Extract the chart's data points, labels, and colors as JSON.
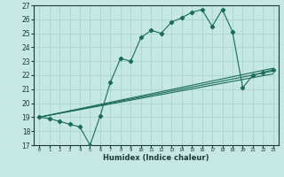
{
  "xlabel": "Humidex (Indice chaleur)",
  "bg_color": "#c5e8e5",
  "grid_color": "#aad4d0",
  "line_color": "#1a6b5a",
  "xlim": [
    -0.5,
    23.5
  ],
  "ylim": [
    17,
    27
  ],
  "xticks": [
    0,
    1,
    2,
    3,
    4,
    5,
    6,
    7,
    8,
    9,
    10,
    11,
    12,
    13,
    14,
    15,
    16,
    17,
    18,
    19,
    20,
    21,
    22,
    23
  ],
  "yticks": [
    17,
    18,
    19,
    20,
    21,
    22,
    23,
    24,
    25,
    26,
    27
  ],
  "line1_x": [
    0,
    1,
    2,
    3,
    4,
    5,
    6,
    7,
    8,
    9,
    10,
    11,
    12,
    13,
    14,
    15,
    16,
    17,
    18,
    19,
    20,
    21,
    22,
    23
  ],
  "line1_y": [
    19.0,
    18.9,
    18.7,
    18.5,
    18.3,
    17.0,
    19.1,
    21.5,
    23.2,
    23.0,
    24.7,
    25.2,
    25.0,
    25.8,
    26.1,
    26.5,
    26.7,
    25.5,
    26.7,
    25.1,
    21.1,
    22.0,
    22.2,
    22.4
  ],
  "line2_x": [
    0,
    23
  ],
  "line2_y": [
    19.0,
    22.5
  ],
  "line3_x": [
    0,
    23
  ],
  "line3_y": [
    19.0,
    22.1
  ],
  "line4_x": [
    0,
    23
  ],
  "line4_y": [
    19.0,
    22.3
  ]
}
